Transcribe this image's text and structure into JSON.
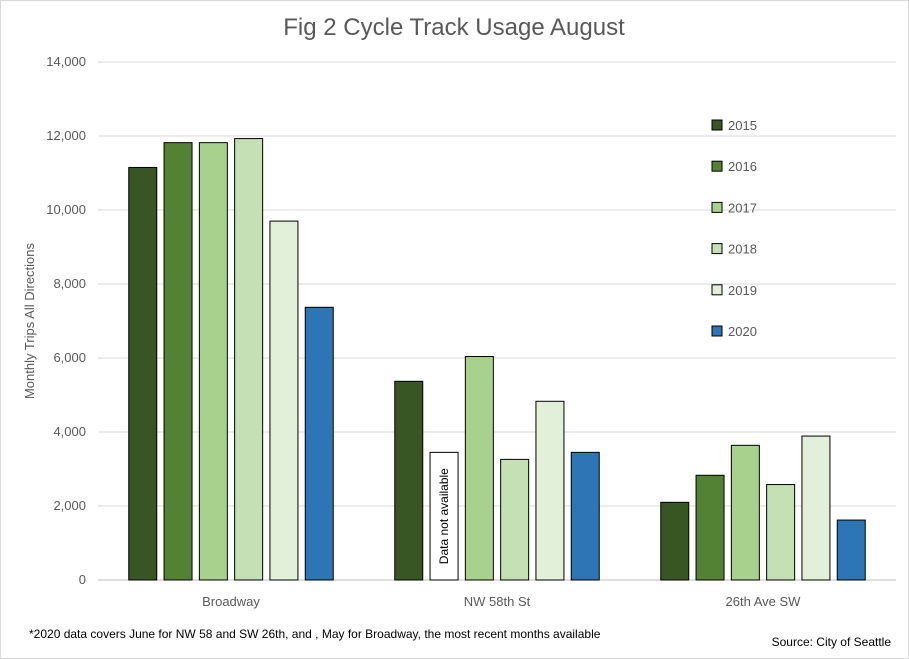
{
  "chart_data": {
    "type": "bar",
    "title": "Fig 2 Cycle Track Usage August",
    "ylabel": "Monthly Trips All Directions",
    "xlabel": "",
    "ylim": [
      0,
      14000
    ],
    "yticks": [
      "0",
      "2,000",
      "4,000",
      "6,000",
      "8,000",
      "10,000",
      "12,000",
      "14,000"
    ],
    "grid": true,
    "legend_position": "right",
    "categories": [
      "Broadway",
      "NW 58th St",
      "26th Ave SW"
    ],
    "series": [
      {
        "name": "2015",
        "color": "#375623",
        "values": [
          11150,
          5370,
          2100
        ]
      },
      {
        "name": "2016",
        "color": "#548235",
        "values": [
          11820,
          null,
          2830
        ]
      },
      {
        "name": "2017",
        "color": "#a9d18e",
        "values": [
          11820,
          6040,
          3640
        ]
      },
      {
        "name": "2018",
        "color": "#c5e0b4",
        "values": [
          11930,
          3260,
          2580
        ]
      },
      {
        "name": "2019",
        "color": "#e2f0d9",
        "values": [
          9700,
          4830,
          3890
        ]
      },
      {
        "name": "2020",
        "color": "#2e75b6",
        "values": [
          7370,
          3450,
          1620
        ]
      }
    ],
    "annotation": {
      "text": "Data not available",
      "category": "NW 58th St",
      "series": "2016",
      "value": 3450
    },
    "footnote": "*2020 data covers June for NW 58 and SW 26th, and , May for Broadway, the most recent months available",
    "source": "Source: City of Seattle"
  }
}
